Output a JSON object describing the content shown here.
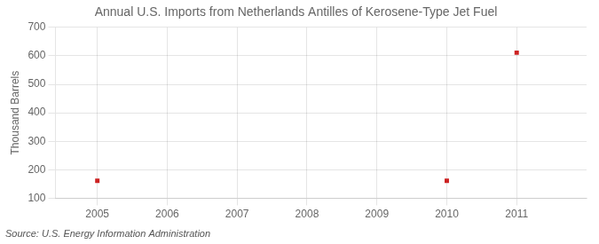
{
  "chart_data": {
    "type": "scatter",
    "title": "Annual U.S. Imports from Netherlands Antilles of Kerosene-Type Jet Fuel",
    "y_label": "Thousand Barrels",
    "annotations": [
      "Source: U.S. Energy Information Administration"
    ],
    "x": [
      2005,
      2010,
      2011
    ],
    "values": [
      161,
      161,
      611
    ],
    "color": "#cc2222",
    "marker": "square",
    "xlim": [
      2004.4,
      2012.0
    ],
    "ylim": [
      100,
      700
    ],
    "xticks": [
      2005,
      2006,
      2007,
      2008,
      2009,
      2010,
      2011
    ],
    "yticks": [
      100,
      200,
      300,
      400,
      500,
      600,
      700
    ],
    "grid": true
  }
}
